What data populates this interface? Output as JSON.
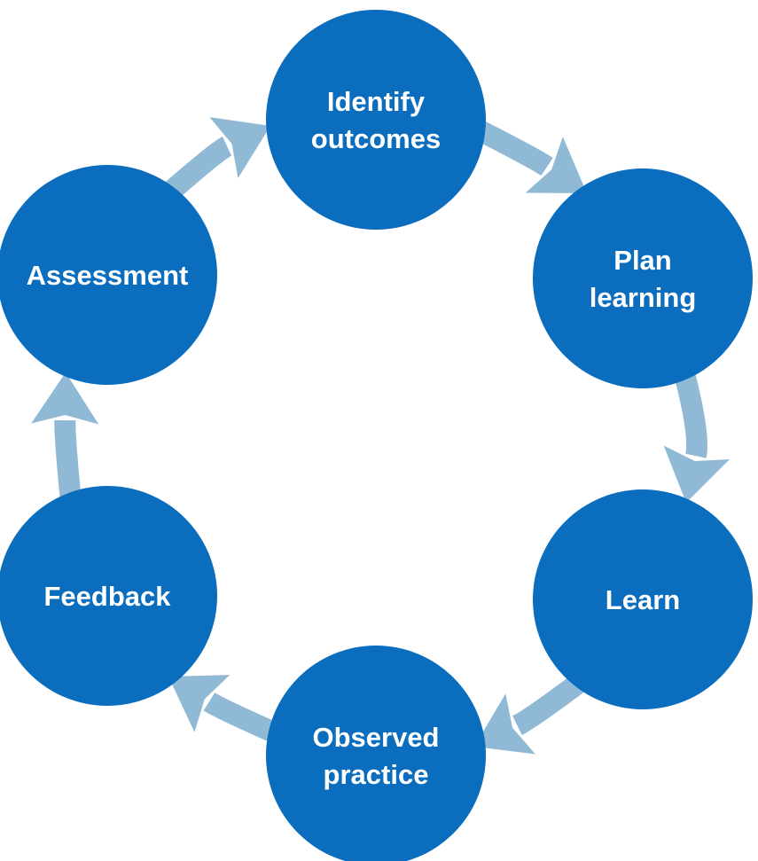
{
  "diagram": {
    "type": "cycle",
    "colors": {
      "node": "#0b6dbd",
      "arrow": "#90b9d5",
      "label": "#ffffff",
      "background": "#ffffff"
    },
    "nodes": [
      {
        "id": "identify-outcomes",
        "lines": [
          "Identify",
          "outcomes"
        ]
      },
      {
        "id": "plan-learning",
        "lines": [
          "Plan",
          "learning"
        ]
      },
      {
        "id": "learn",
        "lines": [
          "Learn"
        ]
      },
      {
        "id": "observed-practice",
        "lines": [
          "Observed",
          "practice"
        ]
      },
      {
        "id": "feedback",
        "lines": [
          "Feedback"
        ]
      },
      {
        "id": "assessment",
        "lines": [
          "Assessment"
        ]
      }
    ],
    "edges": [
      {
        "from": "identify-outcomes",
        "to": "plan-learning"
      },
      {
        "from": "plan-learning",
        "to": "learn"
      },
      {
        "from": "learn",
        "to": "observed-practice"
      },
      {
        "from": "observed-practice",
        "to": "feedback"
      },
      {
        "from": "feedback",
        "to": "assessment"
      },
      {
        "from": "assessment",
        "to": "identify-outcomes"
      }
    ]
  }
}
